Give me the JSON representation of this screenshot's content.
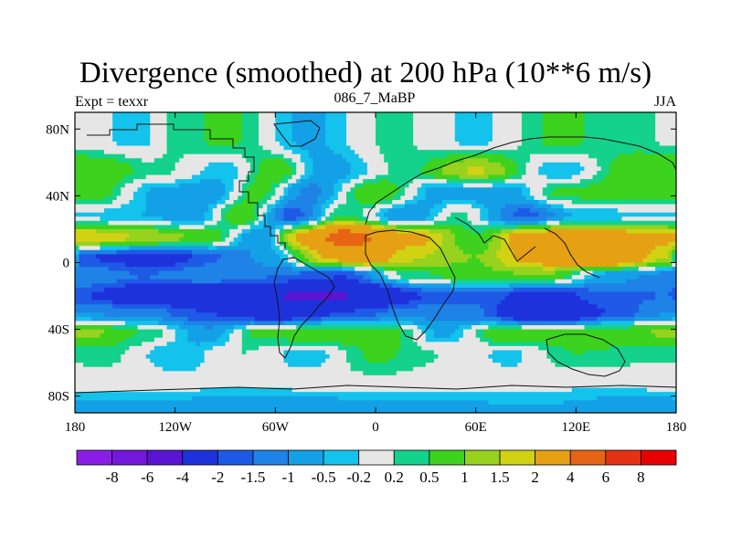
{
  "chart_data": {
    "type": "heatmap",
    "title": "Divergence (smoothed) at 200 hPa (10**6 m/s)",
    "left_label": "Expt = texxr",
    "center_label": "086_7_MaBP",
    "right_label": "JJA",
    "xlim": [
      -180,
      180
    ],
    "ylim": [
      -90,
      90
    ],
    "x_ticks": [
      {
        "value": -180,
        "label": "180"
      },
      {
        "value": -120,
        "label": "120W"
      },
      {
        "value": -60,
        "label": "60W"
      },
      {
        "value": 0,
        "label": "0"
      },
      {
        "value": 60,
        "label": "60E"
      },
      {
        "value": 120,
        "label": "120E"
      },
      {
        "value": 180,
        "label": "180"
      }
    ],
    "y_ticks": [
      {
        "value": 80,
        "label": "80N"
      },
      {
        "value": 40,
        "label": "40N"
      },
      {
        "value": 0,
        "label": "0"
      },
      {
        "value": -40,
        "label": "40S"
      },
      {
        "value": -80,
        "label": "80S"
      }
    ],
    "colorbar": {
      "levels": [
        "-8",
        "-6",
        "-4",
        "-2",
        "-1.5",
        "-1",
        "-0.5",
        "-0.2",
        "0.2",
        "0.5",
        "1",
        "1.5",
        "2",
        "4",
        "6",
        "8"
      ],
      "colors": [
        "#8a1ee6",
        "#7418dc",
        "#5a14d2",
        "#1e32dc",
        "#1e5ae6",
        "#1e82e6",
        "#14a0e6",
        "#14c3eb",
        "#e6e6e6",
        "#14d28c",
        "#3cd21e",
        "#96d21e",
        "#d2d214",
        "#e6a014",
        "#e66414",
        "#e63214",
        "#e60000"
      ]
    },
    "bands": [
      {
        "lat": 73,
        "lon": [
          -140,
          -120,
          -90,
          -40,
          10,
          60,
          110,
          150
        ],
        "values": [
          -0.3,
          0.3,
          0.6,
          -0.6,
          0.3,
          -0.3,
          0.6,
          0.3
        ]
      },
      {
        "lat": 55,
        "lon": [
          -170,
          -130,
          -90,
          -60,
          -30,
          20,
          60,
          110,
          160
        ],
        "values": [
          1.0,
          0.3,
          -0.4,
          0.9,
          -0.8,
          0.4,
          1.6,
          -0.5,
          1.0
        ]
      },
      {
        "lat": 42,
        "lon": [
          -170,
          -130,
          -100,
          -70,
          -40,
          0,
          40,
          80,
          110,
          150
        ],
        "values": [
          0.8,
          -0.6,
          -0.9,
          0.7,
          -1.2,
          1.0,
          -0.8,
          -0.7,
          0.6,
          0.9
        ]
      },
      {
        "lat": 28,
        "lon": [
          -170,
          -140,
          -110,
          -80,
          -50,
          -20,
          20,
          50,
          90,
          120,
          160
        ],
        "values": [
          -0.3,
          -0.5,
          -0.8,
          0.9,
          -1.8,
          0.5,
          -1.0,
          0.3,
          -1.7,
          -0.5,
          -0.3
        ]
      },
      {
        "lat": 15,
        "lon": [
          -175,
          -140,
          -100,
          -70,
          -40,
          -20,
          20,
          60,
          90,
          120,
          160
        ],
        "values": [
          2.0,
          1.5,
          0.8,
          -1.0,
          2.8,
          5.0,
          2.4,
          0.6,
          2.5,
          3.2,
          2.5
        ]
      },
      {
        "lat": 3,
        "lon": [
          -175,
          -130,
          -90,
          -60,
          -30,
          -10,
          20,
          60,
          90,
          110,
          140,
          175
        ],
        "values": [
          -2.0,
          -2.5,
          -1.5,
          -0.6,
          2.0,
          3.0,
          1.6,
          1.0,
          2.2,
          2.8,
          3.5,
          1.5
        ]
      },
      {
        "lat": -8,
        "lon": [
          -175,
          -140,
          -100,
          -60,
          -20,
          20,
          60,
          100,
          140,
          175
        ],
        "values": [
          -1.0,
          -1.5,
          -1.0,
          -1.5,
          -2.0,
          0.3,
          0.8,
          1.0,
          -0.8,
          -1.2
        ]
      },
      {
        "lat": -20,
        "lon": [
          -175,
          -140,
          -100,
          -60,
          -30,
          0,
          30,
          60,
          100,
          140,
          175
        ],
        "values": [
          -2.0,
          -2.8,
          -3.5,
          -4.0,
          -4.5,
          -3.5,
          -2.0,
          -1.6,
          -2.6,
          -1.6,
          -1.5
        ]
      },
      {
        "lat": -30,
        "lon": [
          -175,
          -140,
          -100,
          -60,
          -20,
          20,
          60,
          100,
          140,
          175
        ],
        "values": [
          -1.0,
          -1.2,
          -2.0,
          -3.0,
          -2.0,
          -1.2,
          -1.4,
          -4.0,
          -2.0,
          -1.0
        ]
      },
      {
        "lat": -42,
        "lon": [
          -175,
          -140,
          -100,
          -70,
          -30,
          10,
          40,
          80,
          120,
          160
        ],
        "values": [
          1.2,
          0.5,
          -0.8,
          0.6,
          1.0,
          0.6,
          -0.6,
          1.0,
          0.8,
          1.0
        ]
      },
      {
        "lat": -55,
        "lon": [
          -160,
          -120,
          -80,
          -40,
          0,
          40,
          80,
          120,
          160
        ],
        "values": [
          0.3,
          -0.5,
          0.2,
          -0.4,
          0.6,
          0.2,
          -0.3,
          0.5,
          0.3
        ]
      },
      {
        "lat": -72,
        "lon": [
          -140,
          -80,
          0,
          60,
          120
        ],
        "values": [
          0.0,
          -0.1,
          0.1,
          0.0,
          -0.1
        ]
      },
      {
        "lat": -86,
        "lon": [
          -140,
          -60,
          20,
          100,
          150
        ],
        "values": [
          -0.6,
          -0.8,
          -0.6,
          -0.5,
          -0.7
        ]
      }
    ]
  }
}
